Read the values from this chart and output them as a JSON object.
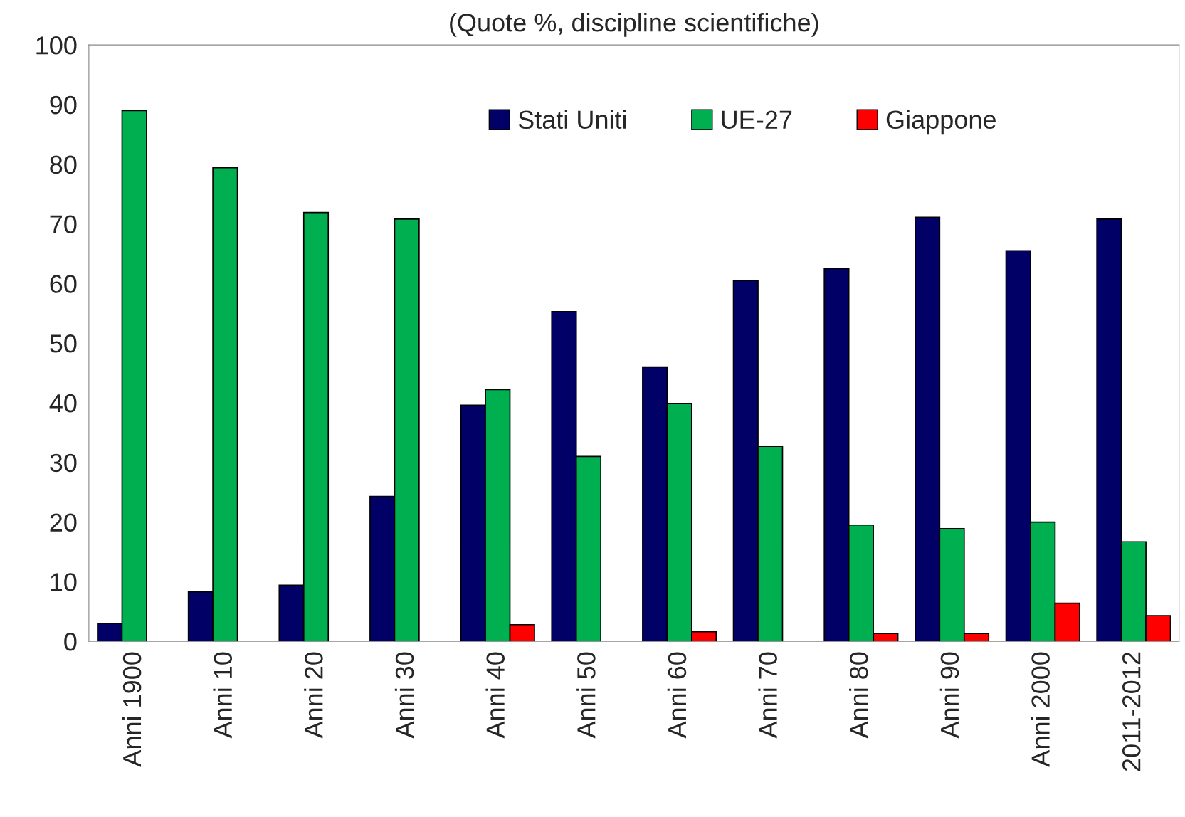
{
  "chart_data": {
    "type": "bar",
    "subtitle": "(Quote %, discipline scientifiche)",
    "categories": [
      "Anni 1900",
      "Anni 10",
      "Anni 20",
      "Anni 30",
      "Anni 40",
      "Anni 50",
      "Anni 60",
      "Anni 70",
      "Anni 80",
      "Anni 90",
      "Anni 2000",
      "2011-2012"
    ],
    "series": [
      {
        "name": "Stati Uniti",
        "color": "#000066",
        "values": [
          3.0,
          8.3,
          9.4,
          24.3,
          39.6,
          55.3,
          46.0,
          60.5,
          62.5,
          71.1,
          65.5,
          70.8
        ]
      },
      {
        "name": "UE-27",
        "color": "#00b050",
        "values": [
          89.0,
          79.4,
          71.9,
          70.8,
          42.2,
          31.0,
          39.9,
          32.7,
          19.5,
          18.9,
          20.0,
          16.7
        ]
      },
      {
        "name": "Giappone",
        "color": "#ff0000",
        "values": [
          null,
          null,
          null,
          null,
          2.8,
          null,
          1.6,
          null,
          1.3,
          1.3,
          6.4,
          4.3
        ]
      }
    ],
    "ylim": [
      0,
      100
    ],
    "yticks": [
      0,
      10,
      20,
      30,
      40,
      50,
      60,
      70,
      80,
      90,
      100
    ],
    "grid": false,
    "legend": "top"
  }
}
